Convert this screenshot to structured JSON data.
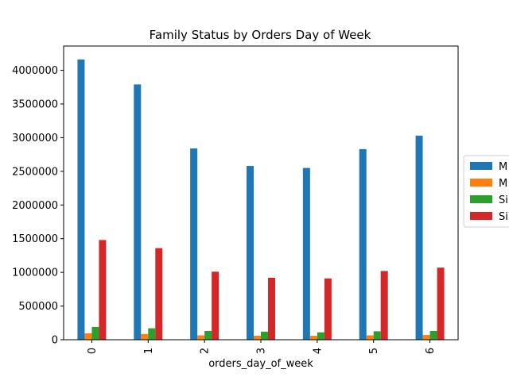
{
  "chart_data": {
    "type": "bar",
    "title": "Family Status by Orders Day of Week",
    "xlabel": "orders_day_of_week",
    "ylabel": "",
    "categories": [
      "0",
      "1",
      "2",
      "3",
      "4",
      "5",
      "6"
    ],
    "ylim": [
      0,
      4360000
    ],
    "yticks": [
      0,
      500000,
      1000000,
      1500000,
      2000000,
      2500000,
      3000000,
      3500000,
      4000000
    ],
    "grid": false,
    "legend_position": "right",
    "series": [
      {
        "name": "M",
        "color": "#1f77b4",
        "values": [
          4160000,
          3790000,
          2840000,
          2580000,
          2550000,
          2830000,
          3030000
        ]
      },
      {
        "name": "M",
        "color": "#ff7f0e",
        "values": [
          95000,
          85000,
          65000,
          60000,
          58000,
          65000,
          70000
        ]
      },
      {
        "name": "Si",
        "color": "#2ca02c",
        "values": [
          190000,
          170000,
          130000,
          120000,
          110000,
          125000,
          130000
        ]
      },
      {
        "name": "Si",
        "color": "#d62728",
        "values": [
          1480000,
          1360000,
          1010000,
          920000,
          910000,
          1020000,
          1070000
        ]
      }
    ]
  }
}
